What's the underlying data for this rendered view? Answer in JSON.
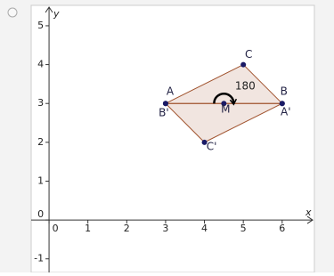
{
  "chart_data": {
    "type": "geometry",
    "xlabel": "x",
    "ylabel": "y",
    "xlim": [
      -0.46,
      6.83
    ],
    "ylim": [
      -1.35,
      5.48
    ],
    "xticks": [
      0,
      1,
      2,
      3,
      4,
      5,
      6
    ],
    "yticks": [
      -1,
      0,
      1,
      2,
      3,
      4,
      5
    ],
    "polygons": [
      {
        "x": [
          3,
          6,
          5
        ],
        "y": [
          3,
          3,
          4
        ],
        "color": "#a0522d"
      },
      {
        "x": [
          6,
          3,
          4
        ],
        "y": [
          3,
          3,
          2
        ],
        "color": "#a0522d"
      }
    ],
    "points": [
      {
        "name": "A",
        "x": 3,
        "y": 3
      },
      {
        "name": "B",
        "x": 6,
        "y": 3
      },
      {
        "name": "C",
        "x": 5,
        "y": 4
      },
      {
        "name": "A'",
        "x": 6,
        "y": 3
      },
      {
        "name": "B'",
        "x": 3,
        "y": 3
      },
      {
        "name": "C'",
        "x": 4,
        "y": 2
      },
      {
        "name": "M",
        "x": 4.5,
        "y": 3
      }
    ],
    "point_color": "#1a1a66",
    "angle": 180
  }
}
